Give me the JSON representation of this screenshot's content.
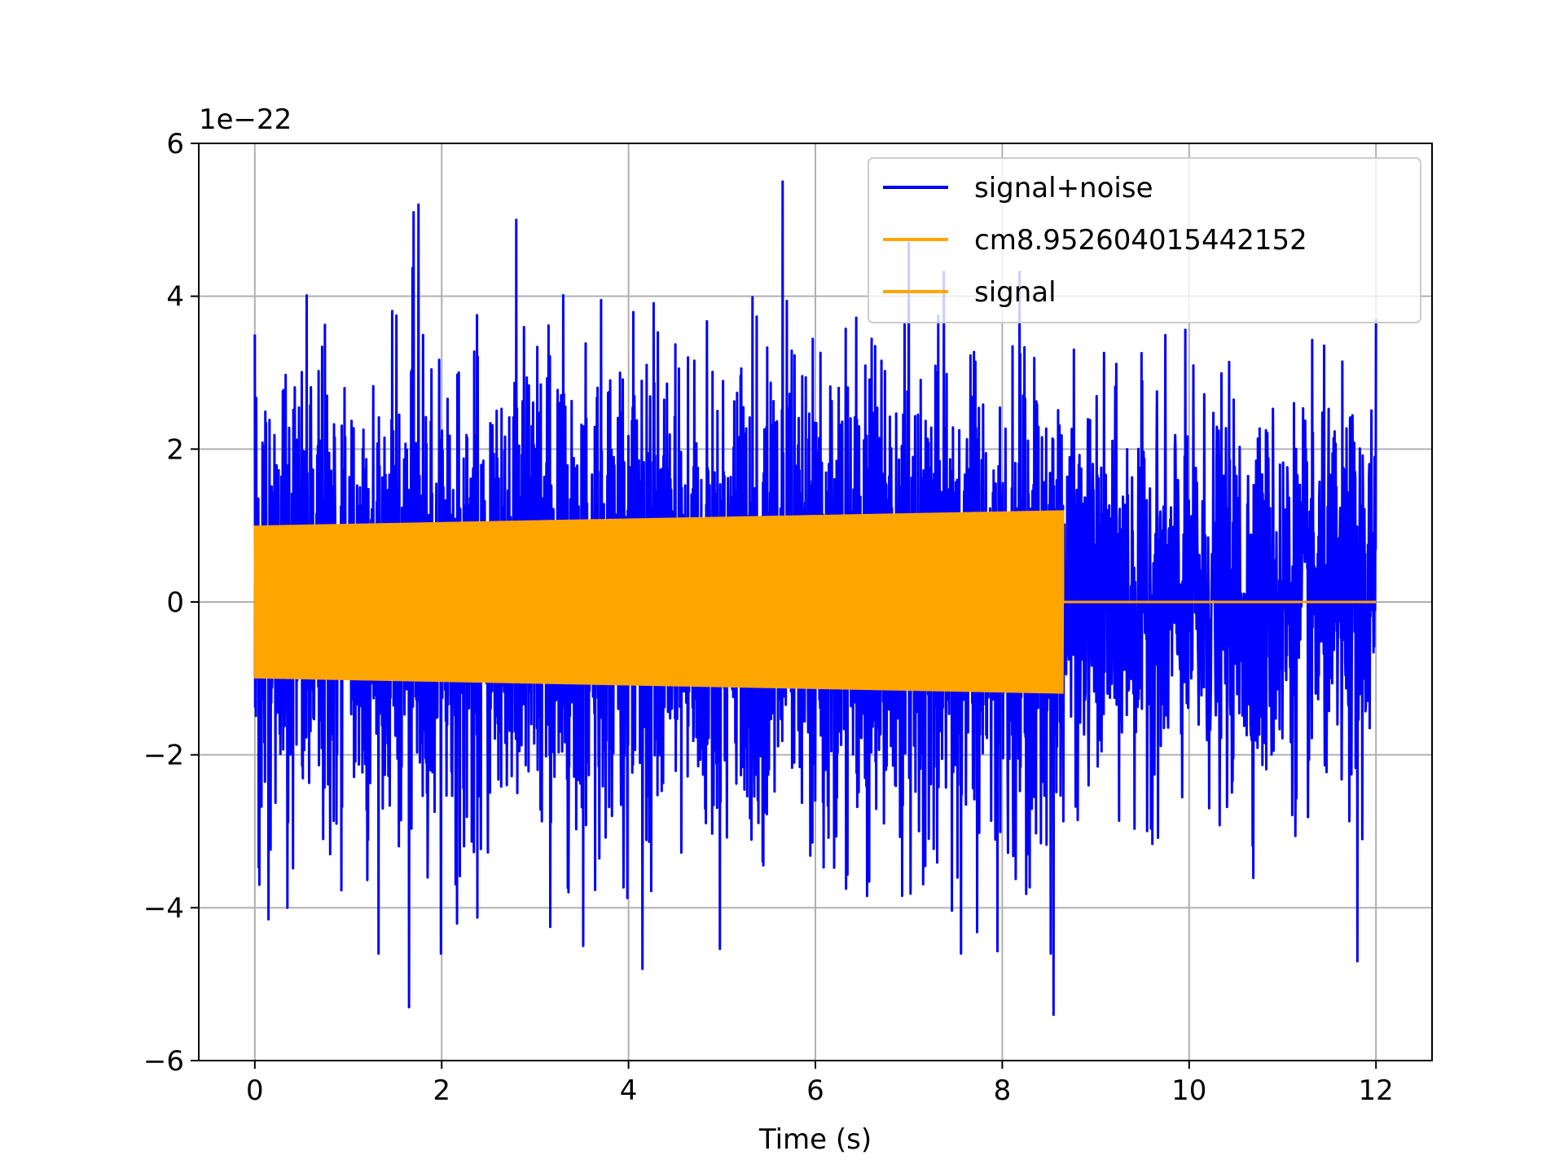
{
  "chart_data": {
    "type": "line",
    "xlabel": "Time (s)",
    "ylabel": "",
    "y_offset_label": "1e−22",
    "xlim": [
      -0.6,
      12.6
    ],
    "ylim": [
      -6,
      6
    ],
    "y_multiplier": 1e-22,
    "x_ticks": [
      0,
      2,
      4,
      6,
      8,
      10,
      12
    ],
    "x_tick_labels": [
      "0",
      "2",
      "4",
      "6",
      "8",
      "10",
      "12"
    ],
    "y_ticks": [
      -6,
      -4,
      -2,
      0,
      2,
      4,
      6
    ],
    "y_tick_labels": [
      "−6",
      "−4",
      "−2",
      "0",
      "2",
      "4",
      "6"
    ],
    "grid": true,
    "legend_position": "upper right",
    "series": [
      {
        "name": "signal+noise",
        "color": "#0000ff",
        "x_range": [
          0,
          12
        ],
        "approx_rms": 1.2,
        "y_max": 5.5,
        "y_min": -5.4,
        "description_values": [
          {
            "x": 0.0,
            "y": 3.5
          },
          {
            "x": 0.05,
            "y": -3.7
          },
          {
            "x": 0.35,
            "y": -4.0
          },
          {
            "x": 1.65,
            "y": -5.3
          },
          {
            "x": 1.7,
            "y": 5.1
          },
          {
            "x": 1.75,
            "y": 5.2
          },
          {
            "x": 2.8,
            "y": 5.0
          },
          {
            "x": 4.15,
            "y": -4.8
          },
          {
            "x": 5.65,
            "y": 5.5
          },
          {
            "x": 7.0,
            "y": 4.7
          },
          {
            "x": 8.55,
            "y": -5.4
          },
          {
            "x": 11.8,
            "y": -4.7
          },
          {
            "x": 12.0,
            "y": 3.7
          }
        ]
      },
      {
        "name": "cm8.952604015442152",
        "color": "#ffa500",
        "x_range": [
          0,
          8.65
        ],
        "amplitude_start": 1.0,
        "amplitude_end": 1.2,
        "after_end_value": 0
      },
      {
        "name": "signal",
        "color": "#ffa500",
        "x_range": [
          0,
          12
        ],
        "amplitude_start": 1.0,
        "amplitude_end": 1.2,
        "chirp_end": 8.65,
        "after_end_value": 0
      }
    ]
  }
}
